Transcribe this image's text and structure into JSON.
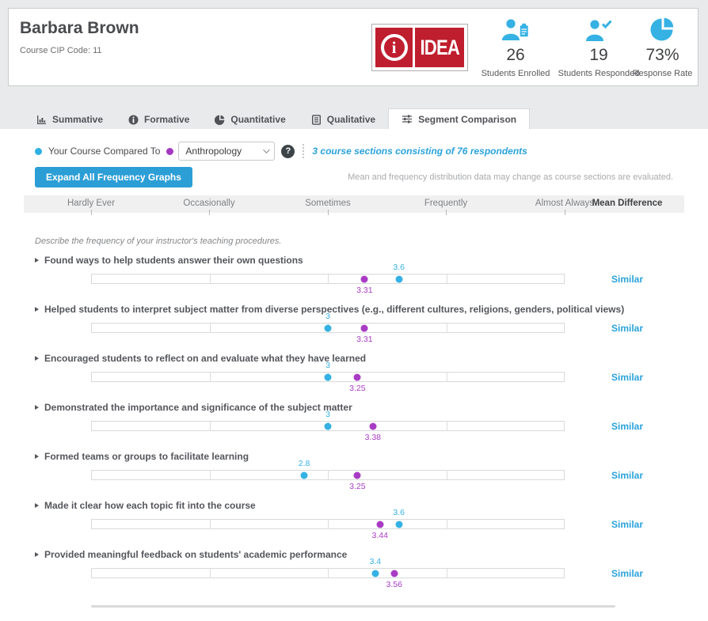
{
  "header": {
    "instructor_name": "Barbara Brown",
    "course_cip": "Course CIP Code: 11",
    "logo": {
      "icon_letter": "i",
      "wordmark": "IDEA",
      "color": "#bf1e2e"
    },
    "stats": [
      {
        "icon": "students-enrolled-icon",
        "value": "26",
        "label": "Students Enrolled"
      },
      {
        "icon": "students-responded-icon",
        "value": "19",
        "label": "Students Responded"
      },
      {
        "icon": "response-rate-pie-icon",
        "value": "73%",
        "label": "Response Rate"
      }
    ],
    "accent_color": "#35b1e4"
  },
  "tabs": [
    {
      "label": "Summative",
      "icon": "bar-chart-icon",
      "active": false
    },
    {
      "label": "Formative",
      "icon": "info-icon",
      "active": false
    },
    {
      "label": "Quantitative",
      "icon": "pie-chart-icon",
      "active": false
    },
    {
      "label": "Qualitative",
      "icon": "document-icon",
      "active": false
    },
    {
      "label": "Segment Comparison",
      "icon": "sliders-icon",
      "active": true
    }
  ],
  "comparison_bar": {
    "legend_label": "Your Course Compared To",
    "your_course_color": "#2fb0e3",
    "comparison_color": "#a438c2",
    "segment_select_value": "Anthropology",
    "help_icon": "?",
    "segment_info": "3 course sections consisting of 76 respondents"
  },
  "toolbar": {
    "expand_button_label": "Expand All Frequency Graphs",
    "note": "Mean and frequency distribution data may change as course sections are evaluated."
  },
  "chart_data": {
    "type": "scatter",
    "prompt": "Describe the frequency of your instructor's teaching procedures.",
    "x_axis": {
      "labels": [
        "Hardly Ever",
        "Occasionally",
        "Sometimes",
        "Frequently",
        "Almost Always"
      ],
      "values": [
        1,
        2,
        3,
        4,
        5
      ],
      "range": [
        1,
        5
      ]
    },
    "mean_difference_header": "Mean Difference",
    "legend": [
      {
        "name": "Your Course",
        "color": "#2fb0e3"
      },
      {
        "name": "Anthropology",
        "color": "#a438c2"
      }
    ],
    "rows": [
      {
        "title": "Found ways to help students answer their own questions",
        "your_course": "3.6",
        "comparison": "3.31",
        "mean_difference": "Similar"
      },
      {
        "title": "Helped students to interpret subject matter from diverse perspectives (e.g., different cultures, religions, genders, political views)",
        "your_course": "3",
        "comparison": "3.31",
        "mean_difference": "Similar"
      },
      {
        "title": "Encouraged students to reflect on and evaluate what they have learned",
        "your_course": "3",
        "comparison": "3.25",
        "mean_difference": "Similar"
      },
      {
        "title": "Demonstrated the importance and significance of the subject matter",
        "your_course": "3",
        "comparison": "3.38",
        "mean_difference": "Similar"
      },
      {
        "title": "Formed teams or groups to facilitate learning",
        "your_course": "2.8",
        "comparison": "3.25",
        "mean_difference": "Similar"
      },
      {
        "title": "Made it clear how each topic fit into the course",
        "your_course": "3.6",
        "comparison": "3.44",
        "mean_difference": "Similar"
      },
      {
        "title": "Provided meaningful feedback on students' academic performance",
        "your_course": "3.4",
        "comparison": "3.56",
        "mean_difference": "Similar"
      }
    ]
  }
}
